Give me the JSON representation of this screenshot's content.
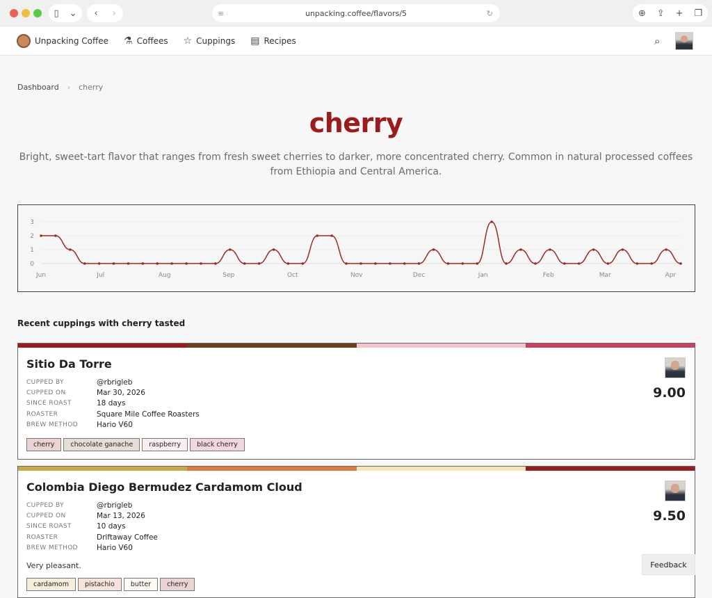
{
  "browser": {
    "url": "unpacking.coffee/flavors/5"
  },
  "nav": {
    "brand": "Unpacking Coffee",
    "items": [
      {
        "label": "Coffees",
        "icon": "flask-icon"
      },
      {
        "label": "Cuppings",
        "icon": "star-icon"
      },
      {
        "label": "Recipes",
        "icon": "clipboard-icon"
      }
    ]
  },
  "breadcrumb": {
    "root": "Dashboard",
    "current": "cherry"
  },
  "page": {
    "title": "cherry",
    "description": "Bright, sweet-tart flavor that ranges from fresh sweet cherries to darker, more concentrated cherry. Common in natural processed coffees from Ethiopia and Central America."
  },
  "chart_data": {
    "type": "line",
    "ylim": [
      0,
      3
    ],
    "yticks": [
      "0",
      "1",
      "2",
      "3"
    ],
    "xticks": [
      "Jun",
      "Jul",
      "Aug",
      "Sep",
      "Oct",
      "Nov",
      "Dec",
      "Jan",
      "Feb",
      "Mar",
      "Apr"
    ],
    "values": [
      2,
      2,
      1,
      0,
      0,
      0,
      0,
      0,
      0,
      0,
      0,
      0,
      0,
      1,
      0,
      0,
      1,
      0,
      0,
      2,
      2,
      0,
      0,
      0,
      0,
      0,
      0,
      1,
      0,
      0,
      0,
      3,
      0,
      1,
      0,
      1,
      0,
      0,
      1,
      0,
      1,
      0,
      0,
      1,
      0
    ],
    "color": "#9b2a24",
    "grid": true
  },
  "section_title": "Recent cuppings with cherry tasted",
  "labels": {
    "cupped_by": "CUPPED BY",
    "cupped_on": "CUPPED ON",
    "since_roast": "SINCE ROAST",
    "roaster": "ROASTER",
    "brew_method": "BREW METHOD"
  },
  "cuppings": [
    {
      "name": "Sitio Da Torre",
      "cupped_by": "@rbrigleb",
      "cupped_on": "Mar 30, 2026",
      "since_roast": "18 days",
      "roaster": "Square Mile Coffee Roasters",
      "brew_method": "Hario V60",
      "score": "9.00",
      "colors": [
        "#9b1c1c",
        "#6b3d1a",
        "#f2c4cc",
        "#c9415e"
      ],
      "tags": [
        {
          "label": "cherry",
          "color": "#ecd3d3"
        },
        {
          "label": "chocolate ganache",
          "color": "#e6ddd6"
        },
        {
          "label": "raspberry",
          "color": "#fbeef0"
        },
        {
          "label": "black cherry",
          "color": "#f1d6dd"
        }
      ]
    },
    {
      "name": "Colombia Diego Bermudez Cardamom Cloud",
      "cupped_by": "@rbrigleb",
      "cupped_on": "Mar 13, 2026",
      "since_roast": "10 days",
      "roaster": "Driftaway Coffee",
      "brew_method": "Hario V60",
      "score": "9.50",
      "note": "Very pleasant.",
      "colors": [
        "#c9a94a",
        "#e07a3c",
        "#f7e3b8",
        "#9b1c1c"
      ],
      "tags": [
        {
          "label": "cardamom",
          "color": "#f7efdc"
        },
        {
          "label": "pistachio",
          "color": "#f6e4dc"
        },
        {
          "label": "butter",
          "color": "#fdfaf4"
        },
        {
          "label": "cherry",
          "color": "#ecd3d3"
        }
      ]
    }
  ],
  "feedback": "Feedback"
}
